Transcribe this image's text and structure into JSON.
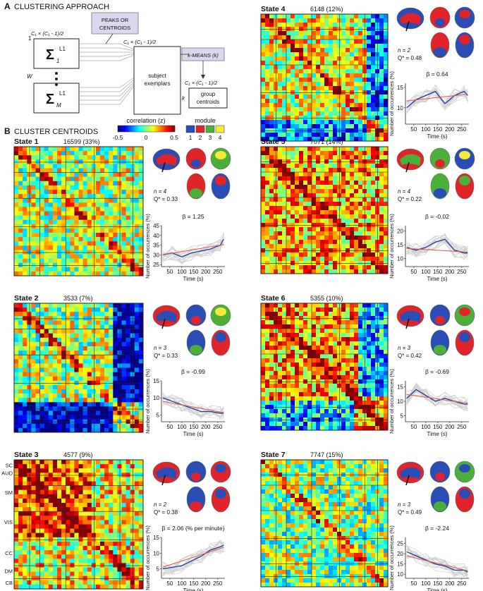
{
  "panelA": {
    "letter": "A",
    "title": "CLUSTERING APPROACH",
    "peaks_label_1": "PEAKS OR",
    "peaks_label_2": "CENTROIDS",
    "kmeans_label": "k-MEANS (k)",
    "subject_label_1": "subject",
    "subject_label_2": "exemplars",
    "group_label_1": "group",
    "group_label_2": "centroids",
    "dim_label": "C₁ × (C₁ - 1)/2",
    "sigma_top_sub": "1",
    "sigma_bottom_sub": "M",
    "sigma_sup": "L1",
    "sigma": "Σ",
    "row_one": "1",
    "row_w": "W",
    "row_k": "k"
  },
  "panelB": {
    "letter": "B",
    "title": "CLUSTER CENTROIDS",
    "corr_title": "correlation (z)",
    "corr_ticks": [
      "-0.5",
      "0",
      "0.5"
    ],
    "module_title": "module",
    "module_ticks": [
      "1",
      "2",
      "3",
      "4"
    ],
    "module_colors": [
      "#2a4db5",
      "#e0242a",
      "#4caf3a",
      "#f4ea3a"
    ],
    "ylabel": "Number of occurrences (%)",
    "xlabel": "Time (s)",
    "axis_labels": [
      "SC",
      "AUD",
      "SM",
      "VIS",
      "CC",
      "DM",
      "CB"
    ]
  },
  "states": [
    {
      "name": "State 1",
      "count": "16599 (33%)",
      "n": "n = 4",
      "q": "Q* = 0.33",
      "beta": "β = 1.25"
    },
    {
      "name": "State 2",
      "count": "3533 (7%)",
      "n": "n = 3",
      "q": "Q* = 0.33",
      "beta": "β = -0.99"
    },
    {
      "name": "State 3",
      "count": "4577 (9%)",
      "n": "n = 2",
      "q": "Q* = 0.38",
      "beta": "β = 2.06 (% per minute)"
    },
    {
      "name": "State 4",
      "count": "6148 (12%)",
      "n": "n = 2",
      "q": "Q* = 0.48",
      "beta": "β = 0.64"
    },
    {
      "name": "State 5",
      "count": "7071 (14%)",
      "n": "n = 4",
      "q": "Q* = 0.22",
      "beta": "β = -0.02"
    },
    {
      "name": "State 6",
      "count": "5355 (10%)",
      "n": "n = 3",
      "q": "Q* = 0.42",
      "beta": "β = -0.69"
    },
    {
      "name": "State 7",
      "count": "7747 (15%)",
      "n": "n = 3",
      "q": "Q* = 0.49",
      "beta": "β = -2.24"
    }
  ],
  "chart_data": [
    {
      "type": "line",
      "title": "State 1",
      "x": [
        20,
        60,
        100,
        140,
        180,
        220,
        260,
        275
      ],
      "values": [
        30,
        31,
        29,
        31,
        32,
        33,
        35,
        38
      ],
      "ylim": [
        24,
        45
      ],
      "yticks": [
        "25",
        "30",
        "35",
        "40",
        "45"
      ],
      "xticks": [
        "50",
        "100",
        "150",
        "200",
        "250"
      ],
      "xlabel": "Time (s)",
      "ylabel": "Number of occurrences (%)"
    },
    {
      "type": "line",
      "title": "State 2",
      "x": [
        20,
        60,
        100,
        140,
        180,
        220,
        260,
        275
      ],
      "values": [
        10,
        9,
        8,
        7,
        6,
        6,
        5.5,
        5.5
      ],
      "ylim": [
        3,
        15
      ],
      "yticks": [
        "5",
        "10",
        "15"
      ],
      "xticks": [
        "50",
        "100",
        "150",
        "200",
        "250"
      ],
      "xlabel": "Time (s)",
      "ylabel": "Number of occurrences (%)"
    },
    {
      "type": "line",
      "title": "State 3",
      "x": [
        20,
        60,
        100,
        140,
        180,
        220,
        260,
        275
      ],
      "values": [
        5,
        5.5,
        6,
        7.5,
        9,
        11,
        12,
        12.5
      ],
      "ylim": [
        2,
        15
      ],
      "yticks": [
        "5",
        "10",
        "15"
      ],
      "xticks": [
        "50",
        "100",
        "150",
        "200",
        "250"
      ],
      "xlabel": "Time (s)",
      "ylabel": "Number of occurrences (%)"
    },
    {
      "type": "line",
      "title": "State 4",
      "x": [
        20,
        60,
        100,
        140,
        180,
        220,
        260,
        275
      ],
      "values": [
        10,
        12,
        13,
        14,
        11,
        13,
        14,
        13
      ],
      "ylim": [
        6,
        16
      ],
      "yticks": [
        "10",
        "15"
      ],
      "xticks": [
        "50",
        "100",
        "150",
        "200",
        "250"
      ],
      "xlabel": "Time (s)",
      "ylabel": "Number of occurrences (%)"
    },
    {
      "type": "line",
      "title": "State 5",
      "x": [
        20,
        60,
        100,
        140,
        180,
        220,
        260,
        275
      ],
      "values": [
        14,
        13,
        14,
        16,
        17,
        13,
        12,
        12
      ],
      "ylim": [
        7,
        22
      ],
      "yticks": [
        "10",
        "15",
        "20"
      ],
      "xticks": [
        "50",
        "100",
        "150",
        "200",
        "250"
      ],
      "xlabel": "Time (s)",
      "ylabel": "Number of occurrences (%)"
    },
    {
      "type": "line",
      "title": "State 6",
      "x": [
        20,
        60,
        100,
        140,
        180,
        220,
        260,
        275
      ],
      "values": [
        11,
        14,
        12,
        10,
        11,
        10,
        9,
        9
      ],
      "ylim": [
        3,
        17
      ],
      "yticks": [
        "5",
        "10",
        "15"
      ],
      "xticks": [
        "50",
        "100",
        "150",
        "200",
        "250"
      ],
      "xlabel": "Time (s)",
      "ylabel": "Number of occurrences (%)"
    },
    {
      "type": "line",
      "title": "State 7",
      "x": [
        20,
        60,
        100,
        140,
        180,
        220,
        260,
        275
      ],
      "values": [
        21,
        19,
        17,
        15,
        14,
        12,
        12,
        11
      ],
      "ylim": [
        8,
        28
      ],
      "yticks": [
        "10",
        "15",
        "20",
        "25"
      ],
      "xticks": [
        "50",
        "100",
        "150",
        "200",
        "250"
      ],
      "xlabel": "Time (s)",
      "ylabel": "Number of occurrences (%)"
    }
  ]
}
